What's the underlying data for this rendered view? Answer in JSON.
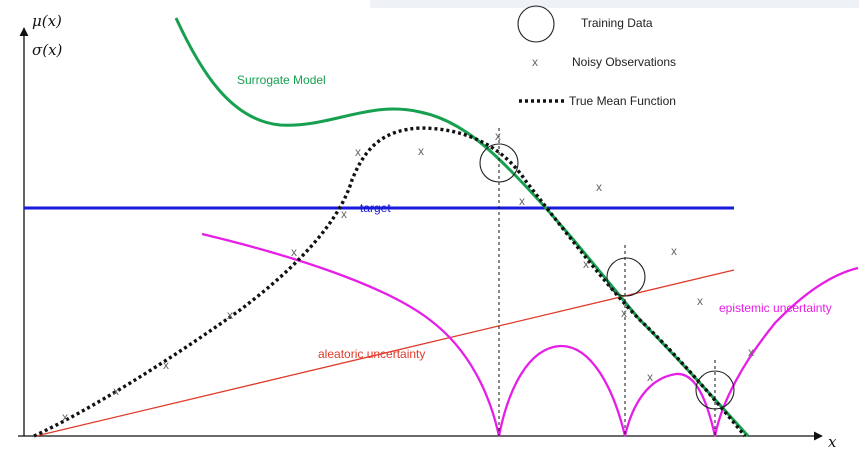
{
  "axes": {
    "y_label_line1": "μ(x)",
    "y_label_line2": "σ(x)",
    "x_label": "x"
  },
  "legend": {
    "training_data": "Training Data",
    "noisy_observations": "Noisy Observations",
    "true_mean_function": "True Mean Function",
    "noisy_marker": "x"
  },
  "labels": {
    "surrogate_model": "Surrogate Model",
    "target": "target",
    "aleatoric": "aleatoric uncertainty",
    "epistemic": "epistemic uncertainty"
  },
  "colors": {
    "surrogate": "#17a050",
    "target": "#1a1adc",
    "aleatoric": "#e03a2a",
    "epistemic": "#e61ee6",
    "mean": "#111111",
    "axis": "#111111",
    "marker": "#666666"
  }
}
